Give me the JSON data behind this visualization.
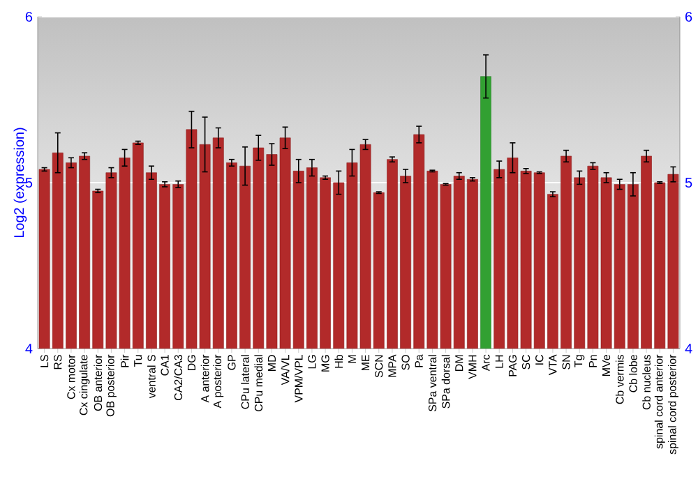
{
  "chart_data": {
    "type": "bar",
    "ylabel": "Log2 (expression)",
    "categories": [
      "LS",
      "RS",
      "Cx motor",
      "Cx cingulate",
      "OB anterior",
      "OB posterior",
      "Pir",
      "Tu",
      "ventral S",
      "CA1",
      "CA2/CA3",
      "DG",
      "A anterior",
      "A posterior",
      "GP",
      "CPu lateral",
      "CPu medial",
      "MD",
      "VA/VL",
      "VPM/VPL",
      "LG",
      "MG",
      "Hb",
      "M",
      "ME",
      "SCN",
      "MPA",
      "SO",
      "Pa",
      "SPa ventral",
      "SPa dorsal",
      "DM",
      "VMH",
      "Arc",
      "LH",
      "PAG",
      "SC",
      "IC",
      "VTA",
      "SN",
      "Tg",
      "Pn",
      "MVe",
      "Cb vermis",
      "Cb lobe",
      "Cb nucleus",
      "spinal cord anterior",
      "spinal cord posterior"
    ],
    "values": [
      5.08,
      5.18,
      5.12,
      5.16,
      4.95,
      5.06,
      5.15,
      5.24,
      5.06,
      4.99,
      4.99,
      5.32,
      5.23,
      5.27,
      5.12,
      5.1,
      5.21,
      5.17,
      5.27,
      5.07,
      5.09,
      5.03,
      5.0,
      5.12,
      5.23,
      4.94,
      5.14,
      5.04,
      5.29,
      5.07,
      4.99,
      5.04,
      5.02,
      5.64,
      5.08,
      5.15,
      5.07,
      5.06,
      4.93,
      5.16,
      5.03,
      5.1,
      5.03,
      4.99,
      4.99,
      5.16,
      5.0,
      5.05
    ],
    "errors": [
      0.01,
      0.12,
      0.03,
      0.02,
      0.01,
      0.03,
      0.05,
      0.01,
      0.04,
      0.015,
      0.02,
      0.11,
      0.165,
      0.06,
      0.02,
      0.115,
      0.075,
      0.065,
      0.065,
      0.07,
      0.05,
      0.01,
      0.07,
      0.08,
      0.03,
      0.005,
      0.015,
      0.04,
      0.05,
      0.005,
      0.005,
      0.02,
      0.01,
      0.13,
      0.05,
      0.09,
      0.015,
      0.005,
      0.015,
      0.035,
      0.04,
      0.02,
      0.03,
      0.03,
      0.07,
      0.035,
      0.005,
      0.045
    ],
    "colors": [
      "#b22a2a",
      "#b22a2a",
      "#b22a2a",
      "#b22a2a",
      "#b22a2a",
      "#b22a2a",
      "#b22a2a",
      "#b22a2a",
      "#b22a2a",
      "#b22a2a",
      "#b22a2a",
      "#b22a2a",
      "#b22a2a",
      "#b22a2a",
      "#b22a2a",
      "#b22a2a",
      "#b22a2a",
      "#b22a2a",
      "#b22a2a",
      "#b22a2a",
      "#b22a2a",
      "#b22a2a",
      "#b22a2a",
      "#b22a2a",
      "#b22a2a",
      "#b22a2a",
      "#b22a2a",
      "#b22a2a",
      "#b22a2a",
      "#b22a2a",
      "#b22a2a",
      "#b22a2a",
      "#b22a2a",
      "#32a032",
      "#b22a2a",
      "#b22a2a",
      "#b22a2a",
      "#b22a2a",
      "#b22a2a",
      "#b22a2a",
      "#b22a2a",
      "#b22a2a",
      "#b22a2a",
      "#b22a2a",
      "#b22a2a",
      "#b22a2a",
      "#b22a2a",
      "#b22a2a"
    ],
    "ylim": [
      4,
      6
    ],
    "yticks": [
      4,
      5,
      6
    ],
    "y2lim": [
      4,
      6
    ],
    "y2ticks": [
      4,
      5,
      6
    ],
    "grid": "y"
  }
}
